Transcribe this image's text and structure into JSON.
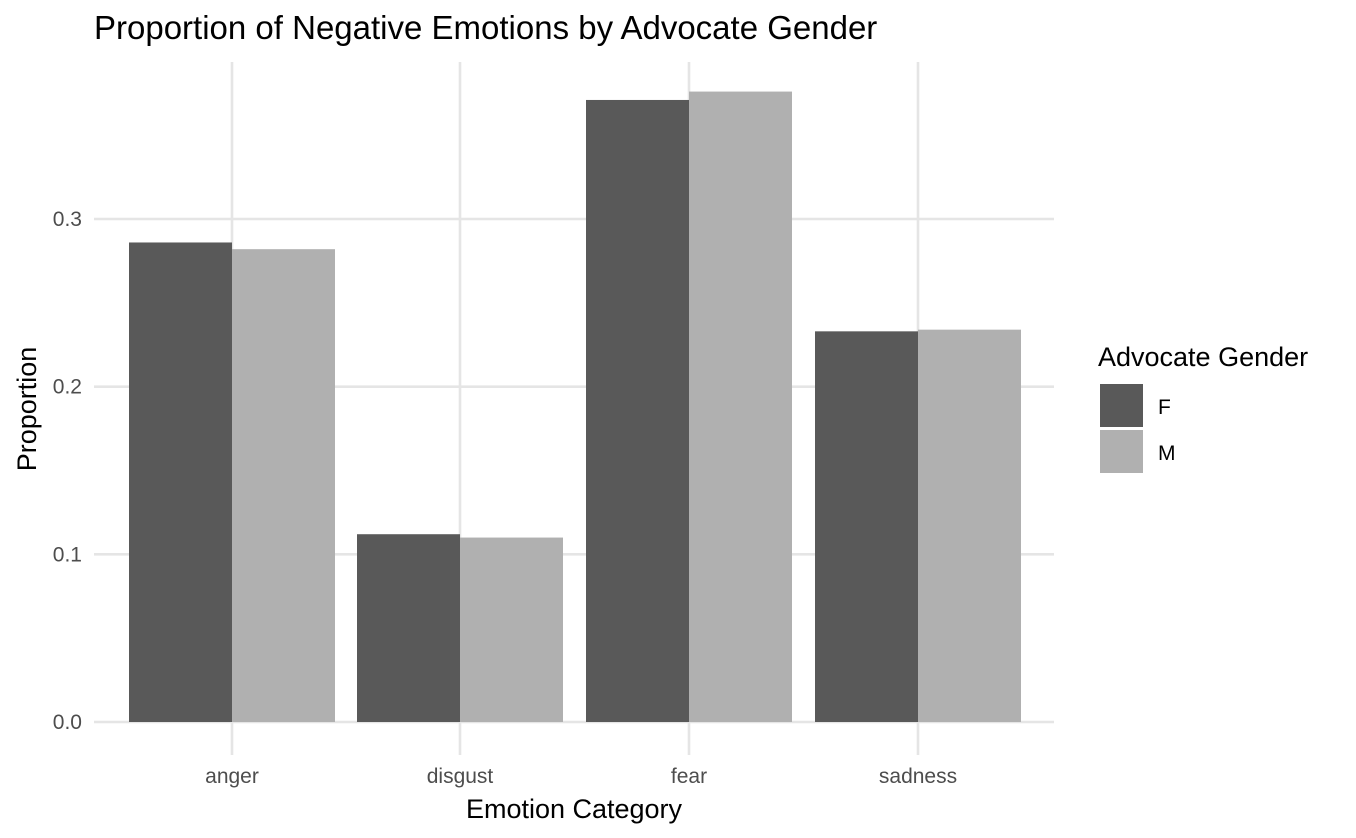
{
  "chart_data": {
    "type": "bar",
    "title": "Proportion of Negative Emotions by Advocate Gender",
    "xlabel": "Emotion Category",
    "ylabel": "Proportion",
    "categories": [
      "anger",
      "disgust",
      "fear",
      "sadness"
    ],
    "series": [
      {
        "name": "F",
        "values": [
          0.286,
          0.112,
          0.371,
          0.233
        ],
        "color": "#595959"
      },
      {
        "name": "M",
        "values": [
          0.282,
          0.11,
          0.376,
          0.234
        ],
        "color": "#b0b0b0"
      }
    ],
    "ylim": [
      0,
      0.39
    ],
    "yticks": [
      0.0,
      0.1,
      0.2,
      0.3
    ],
    "ytick_labels": [
      "0.0",
      "0.1",
      "0.2",
      "0.3"
    ],
    "grid": true,
    "legend": {
      "title": "Advocate Gender",
      "position": "right"
    }
  }
}
